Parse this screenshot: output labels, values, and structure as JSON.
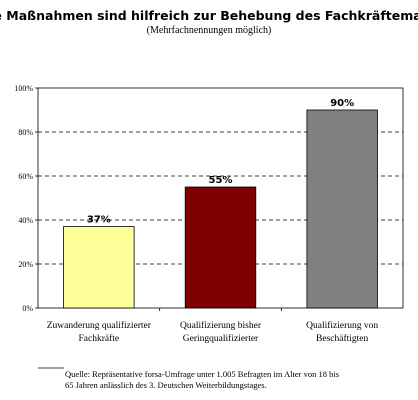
{
  "chart_data": {
    "type": "bar",
    "title": "Welche Maßnahmen sind hilfreich zur Behebung des Fachkräftemangels?",
    "subtitle": "(Mehrfachnennungen möglich)",
    "categories": [
      [
        "Zuwanderung qualifizierter",
        "Fachkräfte"
      ],
      [
        "Qualifizierung bisher",
        "Geringqualifizierter"
      ],
      [
        "Qualifizierung von",
        "Beschäftigten"
      ]
    ],
    "values": [
      37,
      55,
      90
    ],
    "data_labels": [
      "37%",
      "55%",
      "90%"
    ],
    "bar_colors": [
      "#ffff99",
      "#800000",
      "#808080"
    ],
    "ylim": [
      0,
      100
    ],
    "yticks": [
      0,
      20,
      40,
      60,
      80,
      100
    ],
    "ytick_labels": [
      "0%",
      "20%",
      "40%",
      "60%",
      "80%",
      "100%"
    ],
    "grid": "dashed horizontal",
    "plot_background": "#ffffff"
  },
  "footnote": {
    "lines": [
      "Quelle: Repräsentative forsa-Umfrage unter 1.005 Befragten im Alter von 18 bis",
      "65 Jahren anlässlich des 3. Deutschen Weiterbildungstages."
    ]
  }
}
